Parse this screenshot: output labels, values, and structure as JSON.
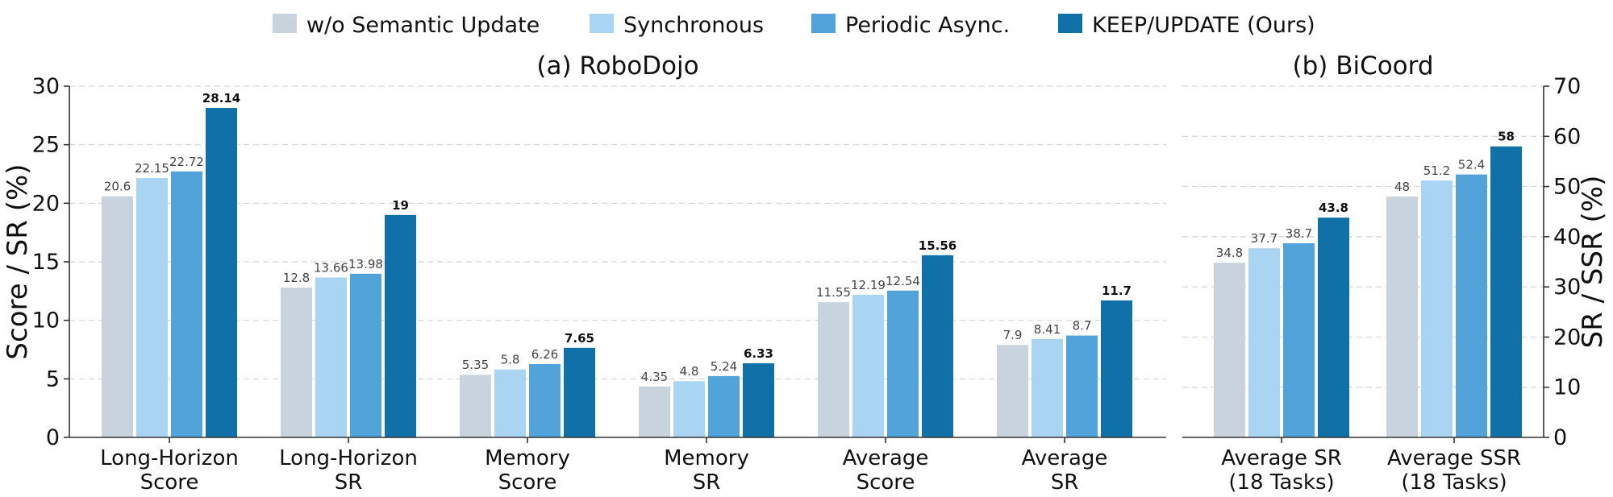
{
  "colors": [
    "#c9d3dd",
    "#a9d4f2",
    "#52a3da",
    "#1070a8"
  ],
  "legend": {
    "items": [
      "w/o Semantic Update",
      "Synchronous",
      "Periodic Async.",
      "KEEP/UPDATE (Ours)"
    ]
  },
  "chart_data": [
    {
      "type": "bar",
      "title": "(a) RoboDojo",
      "ylabel": "Score / SR (%)",
      "ylim": [
        0,
        30
      ],
      "yticks": [
        "0",
        "5",
        "10",
        "15",
        "20",
        "25",
        "30"
      ],
      "grid": true,
      "categories": [
        [
          "Long-Horizon",
          "Score"
        ],
        [
          "Long-Horizon",
          "SR"
        ],
        [
          "Memory",
          "Score"
        ],
        [
          "Memory",
          "SR"
        ],
        [
          "Average",
          "Score"
        ],
        [
          "Average",
          "SR"
        ]
      ],
      "series": [
        {
          "name": "w/o Semantic Update",
          "values": [
            20.6,
            12.8,
            5.35,
            4.35,
            11.55,
            7.9
          ],
          "labels": [
            "20.6",
            "12.8",
            "5.35",
            "4.35",
            "11.55",
            "7.9"
          ]
        },
        {
          "name": "Synchronous",
          "values": [
            22.15,
            13.66,
            5.8,
            4.8,
            12.19,
            8.41
          ],
          "labels": [
            "22.15",
            "13.66",
            "5.8",
            "4.8",
            "12.19",
            "8.41"
          ]
        },
        {
          "name": "Periodic Async.",
          "values": [
            22.72,
            13.98,
            6.26,
            5.24,
            12.54,
            8.7
          ],
          "labels": [
            "22.72",
            "13.98",
            "6.26",
            "5.24",
            "12.54",
            "8.7"
          ]
        },
        {
          "name": "KEEP/UPDATE (Ours)",
          "values": [
            28.14,
            19,
            7.65,
            6.33,
            15.56,
            11.7
          ],
          "labels": [
            "28.14",
            "19",
            "7.65",
            "6.33",
            "15.56",
            "11.7"
          ]
        }
      ]
    },
    {
      "type": "bar",
      "title": "(b) BiCoord",
      "ylabel": "SR / SSR (%)",
      "ylim": [
        0,
        70
      ],
      "yticks": [
        "0",
        "10",
        "20",
        "30",
        "40",
        "50",
        "60",
        "70"
      ],
      "grid": true,
      "categories": [
        [
          "Average SR",
          "(18 Tasks)"
        ],
        [
          "Average SSR",
          "(18 Tasks)"
        ]
      ],
      "series": [
        {
          "name": "w/o Semantic Update",
          "values": [
            34.8,
            48
          ],
          "labels": [
            "34.8",
            "48"
          ]
        },
        {
          "name": "Synchronous",
          "values": [
            37.7,
            51.2
          ],
          "labels": [
            "37.7",
            "51.2"
          ]
        },
        {
          "name": "Periodic Async.",
          "values": [
            38.7,
            52.4
          ],
          "labels": [
            "38.7",
            "52.4"
          ]
        },
        {
          "name": "KEEP/UPDATE (Ours)",
          "values": [
            43.8,
            58
          ],
          "labels": [
            "43.8",
            "58"
          ]
        }
      ]
    }
  ]
}
